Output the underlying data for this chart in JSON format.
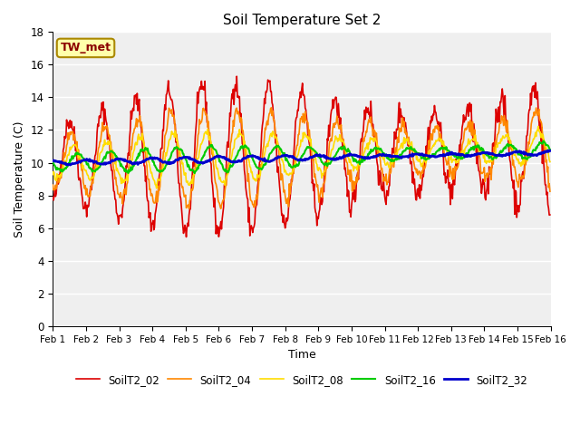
{
  "title": "Soil Temperature Set 2",
  "xlabel": "Time",
  "ylabel": "Soil Temperature (C)",
  "ylim": [
    0,
    18
  ],
  "series_colors": [
    "#DD0000",
    "#FF8800",
    "#FFDD00",
    "#00CC00",
    "#0000CC"
  ],
  "series_labels": [
    "SoilT2_02",
    "SoilT2_04",
    "SoilT2_08",
    "SoilT2_16",
    "SoilT2_32"
  ],
  "series_linewidths": [
    1.2,
    1.2,
    1.2,
    1.5,
    2.0
  ],
  "annotation_text": "TW_met",
  "annotation_color": "#8B0000",
  "annotation_bg": "#FFFFAA",
  "annotation_border": "#AA8800",
  "x_tick_labels": [
    "Feb 1",
    "Feb 2",
    "Feb 3",
    "Feb 4",
    "Feb 5",
    "Feb 6",
    "Feb 7",
    "Feb 8",
    "Feb 9",
    "Feb 10",
    "Feb 11",
    "Feb 12",
    "Feb 13",
    "Feb 14",
    "Feb 15",
    "Feb 16"
  ],
  "fig_bg": "#FFFFFF",
  "plot_bg": "#EFEFEF",
  "grid_color": "#FFFFFF",
  "n_days": 15,
  "pts_per_day": 48,
  "seed": 42
}
